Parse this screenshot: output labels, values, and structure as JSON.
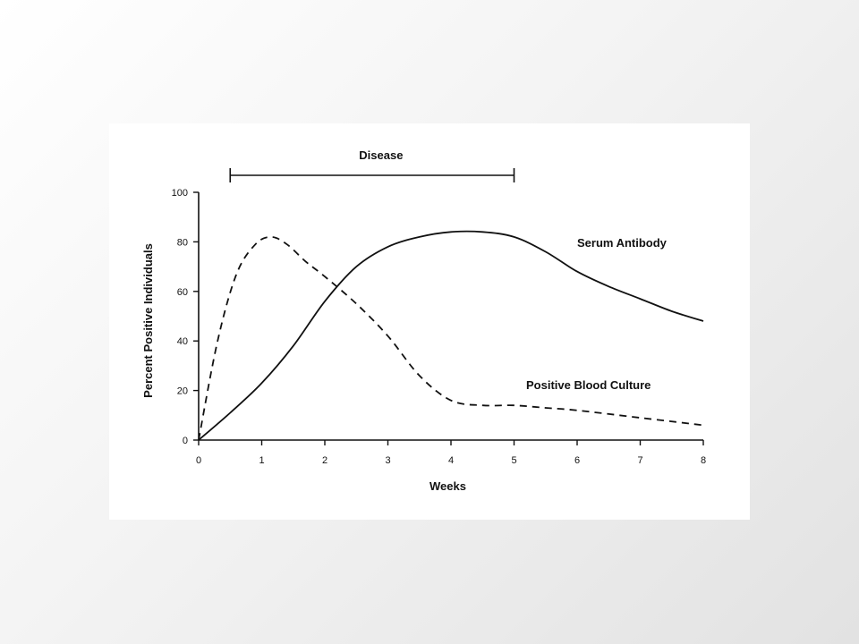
{
  "chart_data": {
    "type": "line",
    "xlabel": "Weeks",
    "ylabel": "Percent Positive Individuals",
    "xlim": [
      0,
      8
    ],
    "ylim": [
      0,
      100
    ],
    "xticks": [
      "0",
      "1",
      "2",
      "3",
      "4",
      "5",
      "6",
      "7",
      "8"
    ],
    "yticks": [
      "0",
      "20",
      "40",
      "60",
      "80",
      "100"
    ],
    "grid": false,
    "series": [
      {
        "name": "Serum Antibody",
        "style": "solid",
        "x": [
          0,
          0.5,
          1,
          1.5,
          2,
          2.5,
          3,
          3.5,
          4,
          4.5,
          5,
          5.5,
          6,
          6.5,
          7,
          7.5,
          8
        ],
        "y": [
          0,
          11,
          23,
          38,
          56,
          70,
          78,
          82,
          84,
          84,
          82,
          76,
          68,
          62,
          57,
          52,
          48
        ]
      },
      {
        "name": "Positive Blood Culture",
        "style": "dashed",
        "x": [
          0,
          0.3,
          0.6,
          0.9,
          1.15,
          1.4,
          1.7,
          2,
          2.5,
          3,
          3.5,
          4,
          4.5,
          5,
          5.5,
          6,
          7,
          8
        ],
        "y": [
          0,
          40,
          67,
          79,
          82,
          79,
          72,
          66,
          55,
          42,
          26,
          16,
          14,
          14,
          13,
          12,
          9,
          6
        ]
      }
    ],
    "annotations": [
      {
        "text": "Disease",
        "type": "range-bracket",
        "x_start": 0.5,
        "x_end": 5
      }
    ]
  }
}
